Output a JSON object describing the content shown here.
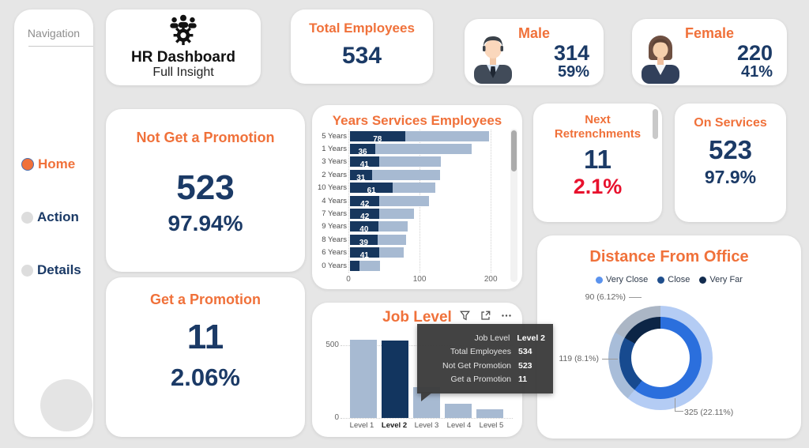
{
  "colors": {
    "accent_orange": "#F0713A",
    "navy": "#1B3A66",
    "alert_red": "#E8112D",
    "bar_light": "#A7BAD2",
    "bar_dark": "#17375E",
    "background": "#E6E6E6"
  },
  "sidebar": {
    "title": "Navigation",
    "items": [
      {
        "label": "Home",
        "active": true
      },
      {
        "label": "Action",
        "active": false
      },
      {
        "label": "Details",
        "active": false
      }
    ]
  },
  "logo": {
    "title": "HR Dashboard",
    "subtitle": "Full Insight"
  },
  "cards": {
    "total_employees": {
      "title": "Total Employees",
      "value": "534"
    },
    "male": {
      "title": "Male",
      "value": "314",
      "percent": "59%"
    },
    "female": {
      "title": "Female",
      "value": "220",
      "percent": "41%"
    },
    "not_promotion": {
      "title": "Not Get a Promotion",
      "value": "523",
      "percent": "97.94%"
    },
    "get_promotion": {
      "title": "Get a Promotion",
      "value": "11",
      "percent": "2.06%"
    },
    "next_retrenchments": {
      "title_line1": "Next",
      "title_line2": "Retrenchments",
      "value": "11",
      "percent": "2.1%"
    },
    "on_services": {
      "title": "On Services",
      "value": "523",
      "percent": "97.9%"
    }
  },
  "toolbar": {
    "filter": "filter",
    "focus_mode": "focus-mode",
    "more_options": "..."
  },
  "tooltip": {
    "rows": [
      {
        "label": "Job Level",
        "value": "Level 2"
      },
      {
        "label": "Total Employees",
        "value": "534"
      },
      {
        "label": "Not Get Promotion",
        "value": "523"
      },
      {
        "label": "Get a Promotion",
        "value": "11"
      }
    ]
  },
  "chart_data": [
    {
      "type": "bar",
      "orientation": "horizontal",
      "title": "Years Services Employees",
      "categories": [
        "5 Years",
        "1 Years",
        "3 Years",
        "2 Years",
        "10 Years",
        "4 Years",
        "7 Years",
        "9 Years",
        "8 Years",
        "6 Years",
        "0 Years"
      ],
      "series": [
        {
          "name": "highlighted",
          "color": "#17375E",
          "values": [
            78,
            36,
            41,
            31,
            61,
            42,
            42,
            40,
            39,
            41,
            13
          ],
          "labels": [
            "78",
            "36",
            "41",
            "31",
            "61",
            "42",
            "42",
            "40",
            "39",
            "41",
            ""
          ]
        },
        {
          "name": "total",
          "color": "#A7BAD2",
          "values": [
            197,
            173,
            129,
            128,
            121,
            112,
            91,
            82,
            80,
            76,
            43
          ]
        }
      ],
      "xticks": [
        0,
        100,
        200
      ],
      "xlim": [
        0,
        222
      ],
      "grid": "dotted-vertical",
      "legend": "none"
    },
    {
      "type": "bar",
      "orientation": "vertical",
      "title": "Job Level",
      "categories": [
        "Level 1",
        "Level 2",
        "Level 3",
        "Level 4",
        "Level 5"
      ],
      "values": [
        540,
        534,
        210,
        100,
        60
      ],
      "highlight_index": 1,
      "highlight_label": "Level 2",
      "bar_color": "#A7BAD2",
      "highlight_color": "#12355F",
      "yticks": [
        0,
        500
      ],
      "ylim": [
        0,
        560
      ],
      "grid": "dotted-horizontal",
      "legend": "none"
    },
    {
      "type": "donut",
      "title": "Distance From Office",
      "legend_position": "top",
      "slices": [
        {
          "label": "Very Close",
          "value": 325,
          "display": "325 (22.11%)",
          "inner_color": "#2B6FDD",
          "outer_color": "#B4CCF4",
          "legend_color": "#5B93EE"
        },
        {
          "label": "Close",
          "value": 119,
          "display": "119 (8.1%)",
          "inner_color": "#174A8F",
          "outer_color": "#A8BDD9",
          "legend_color": "#1F4E8C"
        },
        {
          "label": "Very Far",
          "value": 90,
          "display": "90 (6.12%)",
          "inner_color": "#0C2546",
          "outer_color": "#ABB6C5",
          "legend_color": "#122B4E"
        }
      ]
    }
  ]
}
